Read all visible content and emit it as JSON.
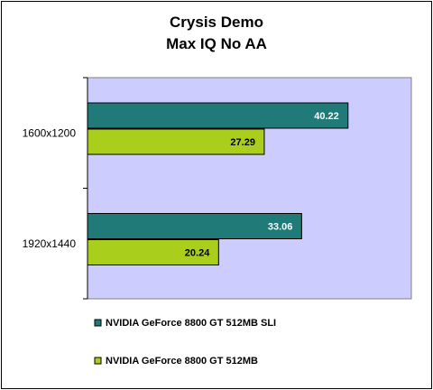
{
  "chart_data": {
    "type": "bar",
    "orientation": "horizontal",
    "title": [
      "Crysis Demo",
      "Max IQ No AA"
    ],
    "categories": [
      "1600x1200",
      "1920x1440"
    ],
    "series": [
      {
        "name": "NVIDIA GeForce 8800 GT 512MB SLI",
        "values": [
          40.22,
          33.06
        ],
        "color": "#1f7a78",
        "label_color": "#ffffff"
      },
      {
        "name": "NVIDIA GeForce 8800 GT 512MB",
        "values": [
          27.29,
          20.24
        ],
        "color": "#a9cf1c",
        "label_color": "#000000"
      }
    ],
    "xlim": [
      0,
      50
    ],
    "grid": false,
    "plot_background": "#ccccff",
    "legend_position": "bottom-left"
  }
}
